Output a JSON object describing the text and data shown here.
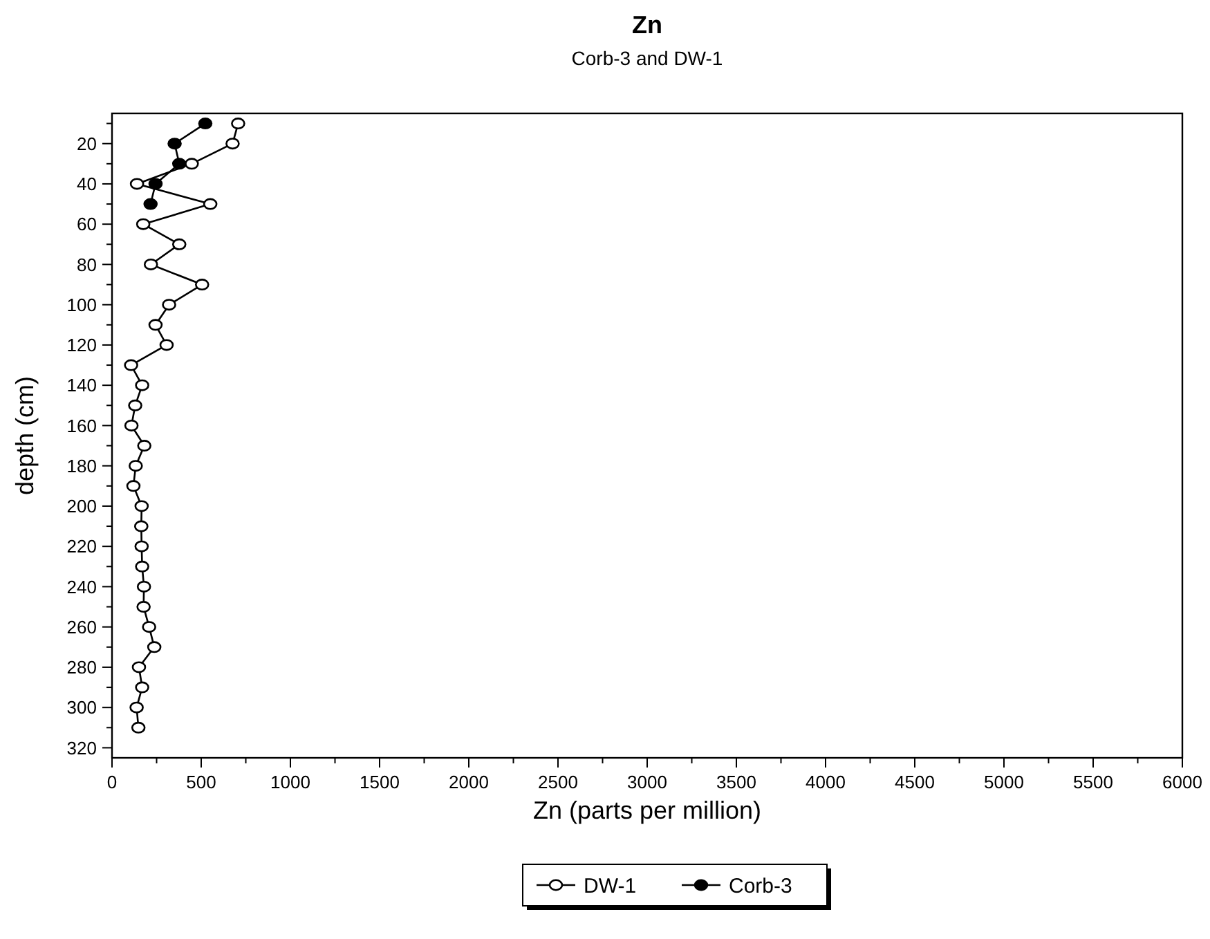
{
  "chart_data": {
    "type": "line",
    "title": "Zn",
    "subtitle": "Corb-3 and DW-1",
    "xlabel": "Zn (parts per million)",
    "ylabel": "depth (cm)",
    "xlim": [
      0,
      6000
    ],
    "ylim": [
      325,
      5
    ],
    "xticks": [
      0,
      {
        "value": 250,
        "label": null
      },
      500,
      {
        "value": 750,
        "label": null
      },
      1000,
      {
        "value": 1250,
        "label": null
      },
      1500,
      {
        "value": 1750,
        "label": null
      },
      2000,
      {
        "value": 2250,
        "label": null
      },
      2500,
      {
        "value": 2750,
        "label": null
      },
      3000,
      {
        "value": 3250,
        "label": null
      },
      3500,
      {
        "value": 3750,
        "label": null
      },
      4000,
      {
        "value": 4250,
        "label": null
      },
      4500,
      {
        "value": 4750,
        "label": null
      },
      5000,
      {
        "value": 5250,
        "label": null
      },
      5500,
      {
        "value": 5750,
        "label": null
      },
      6000
    ],
    "yticks": [
      {
        "value": 10,
        "label": null
      },
      20,
      {
        "value": 30,
        "label": null
      },
      40,
      {
        "value": 50,
        "label": null
      },
      60,
      {
        "value": 70,
        "label": null
      },
      80,
      {
        "value": 90,
        "label": null
      },
      100,
      {
        "value": 110,
        "label": null
      },
      120,
      {
        "value": 130,
        "label": null
      },
      140,
      {
        "value": 150,
        "label": null
      },
      160,
      {
        "value": 170,
        "label": null
      },
      180,
      {
        "value": 190,
        "label": null
      },
      200,
      {
        "value": 210,
        "label": null
      },
      220,
      {
        "value": 230,
        "label": null
      },
      240,
      {
        "value": 250,
        "label": null
      },
      260,
      {
        "value": 270,
        "label": null
      },
      280,
      {
        "value": 290,
        "label": null
      },
      300,
      {
        "value": 310,
        "label": null
      },
      320
    ],
    "grid": false,
    "legend": "bottom",
    "marker": "circle",
    "line_style": "solid",
    "series": [
      {
        "name": "DW-1",
        "color": "#000000",
        "x": [
          707,
          676,
          447,
          140,
          551,
          175,
          377,
          218,
          505,
          320,
          244,
          306,
          107,
          169,
          130,
          109,
          181,
          133,
          120,
          166,
          164,
          166,
          169,
          179,
          177,
          208,
          237,
          151,
          169,
          138,
          148
        ],
        "values": [
          10,
          20,
          30,
          40,
          50,
          60,
          70,
          80,
          90,
          100,
          110,
          120,
          130,
          140,
          150,
          160,
          170,
          180,
          190,
          200,
          210,
          220,
          230,
          240,
          250,
          260,
          270,
          280,
          290,
          300,
          310
        ]
      },
      {
        "name": "Corb-3",
        "color": "#000000",
        "x": [
          523,
          351,
          377,
          244,
          216
        ],
        "values": [
          10,
          20,
          30,
          40,
          50
        ]
      }
    ]
  }
}
